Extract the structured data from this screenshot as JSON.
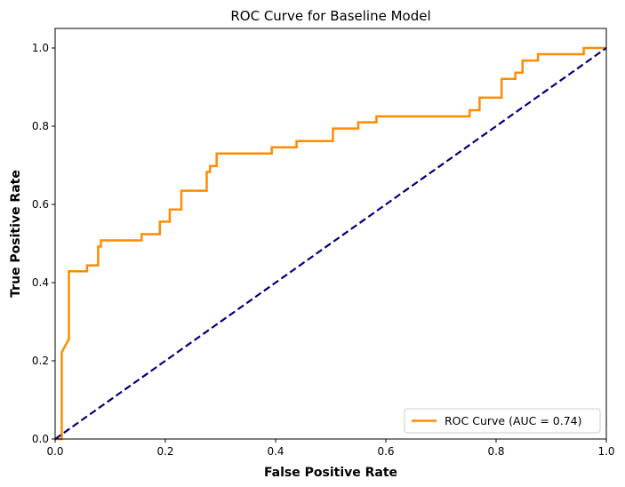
{
  "chart_data": {
    "type": "line",
    "title": "ROC Curve for Baseline Model",
    "xlabel": "False Positive Rate",
    "ylabel": "True Positive Rate",
    "xlim": [
      0.0,
      1.0
    ],
    "ylim": [
      0.0,
      1.05
    ],
    "x_ticks": [
      "0.0",
      "0.2",
      "0.4",
      "0.6",
      "0.8",
      "1.0"
    ],
    "y_ticks": [
      "0.0",
      "0.2",
      "0.4",
      "0.6",
      "0.8",
      "1.0"
    ],
    "grid": false,
    "legend_position": "lower-right",
    "series": [
      {
        "name": "ROC Curve (AUC = 0.74)",
        "color": "#ff8c00",
        "style": "solid",
        "x": [
          0.0,
          0.012,
          0.012,
          0.025,
          0.025,
          0.058,
          0.058,
          0.078,
          0.078,
          0.083,
          0.083,
          0.157,
          0.157,
          0.19,
          0.19,
          0.208,
          0.208,
          0.229,
          0.229,
          0.275,
          0.275,
          0.281,
          0.281,
          0.293,
          0.293,
          0.393,
          0.393,
          0.438,
          0.438,
          0.504,
          0.504,
          0.55,
          0.55,
          0.583,
          0.583,
          0.752,
          0.752,
          0.77,
          0.77,
          0.81,
          0.81,
          0.835,
          0.835,
          0.848,
          0.848,
          0.876,
          0.876,
          0.959,
          0.959,
          1.0
        ],
        "y": [
          0.0,
          0.0,
          0.222,
          0.255,
          0.429,
          0.429,
          0.444,
          0.444,
          0.492,
          0.492,
          0.508,
          0.508,
          0.524,
          0.524,
          0.556,
          0.556,
          0.587,
          0.587,
          0.635,
          0.635,
          0.683,
          0.683,
          0.698,
          0.698,
          0.73,
          0.73,
          0.746,
          0.746,
          0.762,
          0.762,
          0.794,
          0.794,
          0.81,
          0.81,
          0.825,
          0.825,
          0.841,
          0.841,
          0.873,
          0.873,
          0.921,
          0.921,
          0.937,
          0.937,
          0.968,
          0.968,
          0.984,
          0.984,
          1.0,
          1.0
        ]
      },
      {
        "name": "",
        "color": "#000080",
        "style": "dashed",
        "x": [
          0.0,
          1.0
        ],
        "y": [
          0.0,
          1.0
        ]
      }
    ]
  }
}
